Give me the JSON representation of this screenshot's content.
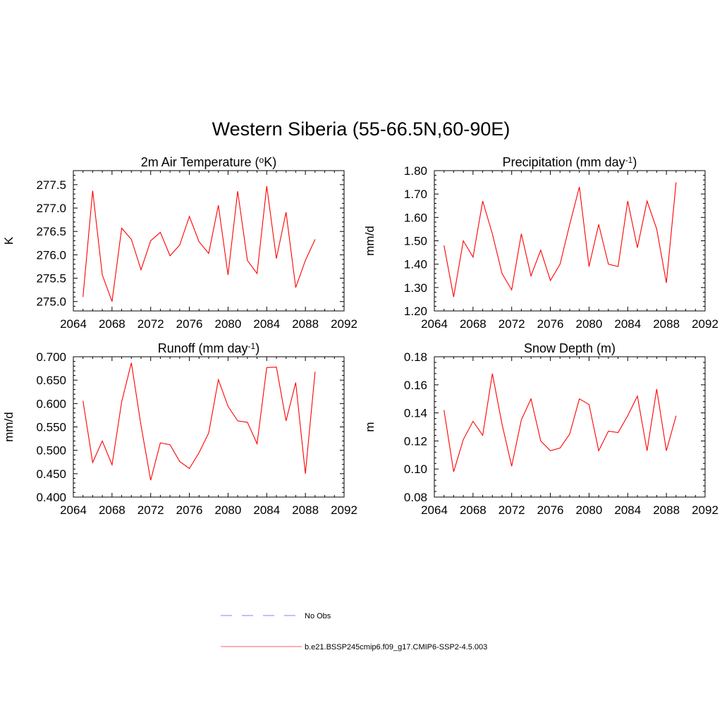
{
  "title": "Western Siberia (55-66.5N,60-90E)",
  "legend": {
    "entries": [
      {
        "label": "No Obs",
        "color": "#9a9aff",
        "style": "dashed"
      },
      {
        "label": "b.e21.BSSP245cmip6.f09_g17.CMIP6-SSP2-4.5.003",
        "color": "#ff7f7f",
        "style": "solid"
      }
    ]
  },
  "chart_data": [
    {
      "type": "line",
      "title": "2m Air Temperature (°K)",
      "title_parts": [
        "2m Air Temperature (",
        "o",
        "K)"
      ],
      "title_sup_index": 1,
      "ylabel": "K",
      "xlim": [
        2064,
        2092
      ],
      "ylim": [
        274.8,
        277.8
      ],
      "xticks": [
        2064,
        2068,
        2072,
        2076,
        2080,
        2084,
        2088,
        2092
      ],
      "yticks": [
        275.0,
        275.5,
        276.0,
        276.5,
        277.0,
        277.5
      ],
      "ytick_labels": [
        "275.0",
        "275.5",
        "276.0",
        "276.5",
        "277.0",
        "277.5"
      ],
      "series": [
        {
          "color": "#ff0000",
          "x": [
            2065,
            2066,
            2067,
            2068,
            2069,
            2070,
            2071,
            2072,
            2073,
            2074,
            2075,
            2076,
            2077,
            2078,
            2079,
            2080,
            2081,
            2082,
            2083,
            2084,
            2085,
            2086,
            2087,
            2088,
            2089
          ],
          "y": [
            275.1,
            277.37,
            275.57,
            275.0,
            276.57,
            276.33,
            275.68,
            276.3,
            276.48,
            275.98,
            276.21,
            276.82,
            276.28,
            276.03,
            277.06,
            275.57,
            277.36,
            275.88,
            275.6,
            277.47,
            275.92,
            276.91,
            275.3,
            275.88,
            276.33
          ]
        }
      ]
    },
    {
      "type": "line",
      "title": "Precipitation (mm day-1)",
      "title_parts": [
        "Precipitation (mm day",
        "-1",
        ")"
      ],
      "title_sup_index": 1,
      "ylabel": "mm/d",
      "xlim": [
        2064,
        2092
      ],
      "ylim": [
        1.2,
        1.8
      ],
      "xticks": [
        2064,
        2068,
        2072,
        2076,
        2080,
        2084,
        2088,
        2092
      ],
      "yticks": [
        1.2,
        1.3,
        1.4,
        1.5,
        1.6,
        1.7,
        1.8
      ],
      "ytick_labels": [
        "1.20",
        "1.30",
        "1.40",
        "1.50",
        "1.60",
        "1.70",
        "1.80"
      ],
      "series": [
        {
          "color": "#ff0000",
          "x": [
            2065,
            2066,
            2067,
            2068,
            2069,
            2070,
            2071,
            2072,
            2073,
            2074,
            2075,
            2076,
            2077,
            2078,
            2079,
            2080,
            2081,
            2082,
            2083,
            2084,
            2085,
            2086,
            2087,
            2088,
            2089
          ],
          "y": [
            1.48,
            1.26,
            1.5,
            1.43,
            1.67,
            1.53,
            1.36,
            1.29,
            1.53,
            1.35,
            1.46,
            1.33,
            1.4,
            1.57,
            1.73,
            1.39,
            1.57,
            1.4,
            1.39,
            1.67,
            1.47,
            1.67,
            1.55,
            1.32,
            1.75
          ]
        }
      ]
    },
    {
      "type": "line",
      "title": "Runoff (mm day-1)",
      "title_parts": [
        "Runoff (mm day",
        "-1",
        ")"
      ],
      "title_sup_index": 1,
      "ylabel": "mm/d",
      "xlim": [
        2064,
        2092
      ],
      "ylim": [
        0.4,
        0.7
      ],
      "xticks": [
        2064,
        2068,
        2072,
        2076,
        2080,
        2084,
        2088,
        2092
      ],
      "yticks": [
        0.4,
        0.45,
        0.5,
        0.55,
        0.6,
        0.65,
        0.7
      ],
      "ytick_labels": [
        "0.400",
        "0.450",
        "0.500",
        "0.550",
        "0.600",
        "0.650",
        "0.700"
      ],
      "series": [
        {
          "color": "#ff0000",
          "x": [
            2065,
            2066,
            2067,
            2068,
            2069,
            2070,
            2071,
            2072,
            2073,
            2074,
            2075,
            2076,
            2077,
            2078,
            2079,
            2080,
            2081,
            2082,
            2083,
            2084,
            2085,
            2086,
            2087,
            2088,
            2089
          ],
          "y": [
            0.606,
            0.474,
            0.52,
            0.469,
            0.604,
            0.687,
            0.553,
            0.436,
            0.516,
            0.512,
            0.476,
            0.461,
            0.495,
            0.537,
            0.651,
            0.594,
            0.563,
            0.56,
            0.514,
            0.677,
            0.678,
            0.563,
            0.645,
            0.45,
            0.668
          ]
        }
      ]
    },
    {
      "type": "line",
      "title": "Snow Depth (m)",
      "title_parts": [
        "Snow Depth (m)",
        "",
        ""
      ],
      "title_sup_index": 1,
      "ylabel": "m",
      "xlim": [
        2064,
        2092
      ],
      "ylim": [
        0.08,
        0.18
      ],
      "xticks": [
        2064,
        2068,
        2072,
        2076,
        2080,
        2084,
        2088,
        2092
      ],
      "yticks": [
        0.08,
        0.1,
        0.12,
        0.14,
        0.16,
        0.18
      ],
      "ytick_labels": [
        "0.08",
        "0.10",
        "0.12",
        "0.14",
        "0.16",
        "0.18"
      ],
      "series": [
        {
          "color": "#ff0000",
          "x": [
            2065,
            2066,
            2067,
            2068,
            2069,
            2070,
            2071,
            2072,
            2073,
            2074,
            2075,
            2076,
            2077,
            2078,
            2079,
            2080,
            2081,
            2082,
            2083,
            2084,
            2085,
            2086,
            2087,
            2088,
            2089
          ],
          "y": [
            0.142,
            0.098,
            0.121,
            0.134,
            0.124,
            0.168,
            0.132,
            0.102,
            0.135,
            0.15,
            0.12,
            0.113,
            0.115,
            0.125,
            0.15,
            0.146,
            0.113,
            0.127,
            0.126,
            0.138,
            0.152,
            0.113,
            0.157,
            0.113,
            0.138
          ]
        }
      ]
    }
  ]
}
